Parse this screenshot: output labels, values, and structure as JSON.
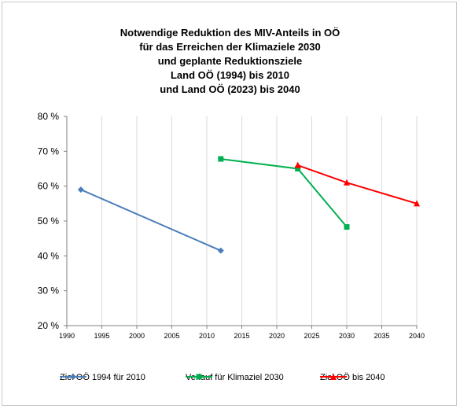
{
  "chart_data": {
    "type": "line",
    "title_lines": [
      "Notwendige Reduktion des MIV-Anteils in OÖ",
      "für das Erreichen der Klimaziele 2030",
      "und geplante Reduktionsziele",
      "Land OÖ (1994) bis 2010",
      "und Land OÖ (2023) bis 2040"
    ],
    "xlim": [
      1990,
      2040
    ],
    "ylim": [
      20,
      80
    ],
    "x_ticks": [
      "1990",
      "1995",
      "2000",
      "2005",
      "2010",
      "2015",
      "2020",
      "2025",
      "2030",
      "2035",
      "2040"
    ],
    "y_ticks": [
      "20 %",
      "30 %",
      "40 %",
      "50 %",
      "60 %",
      "70 %",
      "80 %"
    ],
    "grid": "vertical",
    "legend_position": "bottom",
    "series": [
      {
        "name": "Ziel OÖ 1994 für 2010",
        "color": "#4a7ebb",
        "marker": "diamond",
        "x": [
          1992,
          2012
        ],
        "y": [
          59,
          41.5
        ]
      },
      {
        "name": "Verlauf für Klimaziel 2030",
        "color": "#00b050",
        "marker": "square",
        "x": [
          2012,
          2023,
          2030
        ],
        "y": [
          67.8,
          65,
          48.3
        ]
      },
      {
        "name": "Ziel OÖ bis 2040",
        "color": "#ff0000",
        "marker": "triangle",
        "x": [
          2023,
          2030,
          2040
        ],
        "y": [
          66,
          61,
          55
        ]
      }
    ]
  }
}
